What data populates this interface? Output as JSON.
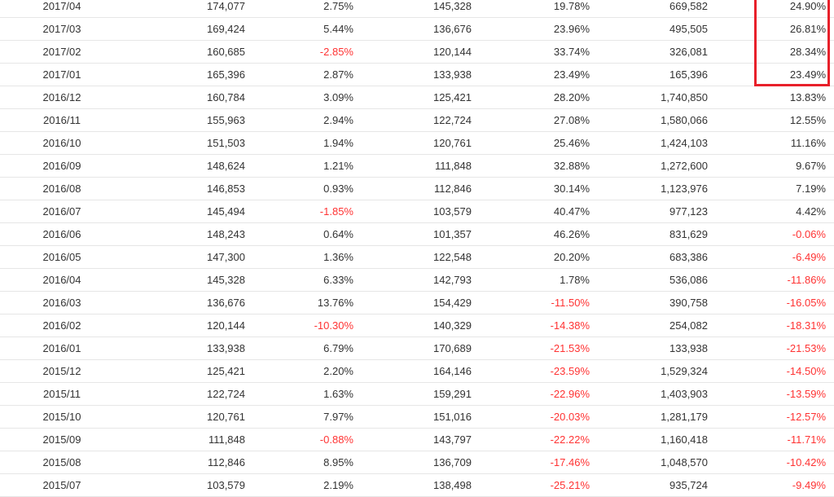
{
  "table": {
    "rows": [
      {
        "period": "2017/04",
        "c1": "174,077",
        "c2": "2.75%",
        "c3": "145,328",
        "c4": "19.78%",
        "c5": "669,582",
        "c6": "24.90%"
      },
      {
        "period": "2017/03",
        "c1": "169,424",
        "c2": "5.44%",
        "c3": "136,676",
        "c4": "23.96%",
        "c5": "495,505",
        "c6": "26.81%"
      },
      {
        "period": "2017/02",
        "c1": "160,685",
        "c2": "-2.85%",
        "c3": "120,144",
        "c4": "33.74%",
        "c5": "326,081",
        "c6": "28.34%"
      },
      {
        "period": "2017/01",
        "c1": "165,396",
        "c2": "2.87%",
        "c3": "133,938",
        "c4": "23.49%",
        "c5": "165,396",
        "c6": "23.49%"
      },
      {
        "period": "2016/12",
        "c1": "160,784",
        "c2": "3.09%",
        "c3": "125,421",
        "c4": "28.20%",
        "c5": "1,740,850",
        "c6": "13.83%"
      },
      {
        "period": "2016/11",
        "c1": "155,963",
        "c2": "2.94%",
        "c3": "122,724",
        "c4": "27.08%",
        "c5": "1,580,066",
        "c6": "12.55%"
      },
      {
        "period": "2016/10",
        "c1": "151,503",
        "c2": "1.94%",
        "c3": "120,761",
        "c4": "25.46%",
        "c5": "1,424,103",
        "c6": "11.16%"
      },
      {
        "period": "2016/09",
        "c1": "148,624",
        "c2": "1.21%",
        "c3": "111,848",
        "c4": "32.88%",
        "c5": "1,272,600",
        "c6": "9.67%"
      },
      {
        "period": "2016/08",
        "c1": "146,853",
        "c2": "0.93%",
        "c3": "112,846",
        "c4": "30.14%",
        "c5": "1,123,976",
        "c6": "7.19%"
      },
      {
        "period": "2016/07",
        "c1": "145,494",
        "c2": "-1.85%",
        "c3": "103,579",
        "c4": "40.47%",
        "c5": "977,123",
        "c6": "4.42%"
      },
      {
        "period": "2016/06",
        "c1": "148,243",
        "c2": "0.64%",
        "c3": "101,357",
        "c4": "46.26%",
        "c5": "831,629",
        "c6": "-0.06%"
      },
      {
        "period": "2016/05",
        "c1": "147,300",
        "c2": "1.36%",
        "c3": "122,548",
        "c4": "20.20%",
        "c5": "683,386",
        "c6": "-6.49%"
      },
      {
        "period": "2016/04",
        "c1": "145,328",
        "c2": "6.33%",
        "c3": "142,793",
        "c4": "1.78%",
        "c5": "536,086",
        "c6": "-11.86%"
      },
      {
        "period": "2016/03",
        "c1": "136,676",
        "c2": "13.76%",
        "c3": "154,429",
        "c4": "-11.50%",
        "c5": "390,758",
        "c6": "-16.05%"
      },
      {
        "period": "2016/02",
        "c1": "120,144",
        "c2": "-10.30%",
        "c3": "140,329",
        "c4": "-14.38%",
        "c5": "254,082",
        "c6": "-18.31%"
      },
      {
        "period": "2016/01",
        "c1": "133,938",
        "c2": "6.79%",
        "c3": "170,689",
        "c4": "-21.53%",
        "c5": "133,938",
        "c6": "-21.53%"
      },
      {
        "period": "2015/12",
        "c1": "125,421",
        "c2": "2.20%",
        "c3": "164,146",
        "c4": "-23.59%",
        "c5": "1,529,324",
        "c6": "-14.50%"
      },
      {
        "period": "2015/11",
        "c1": "122,724",
        "c2": "1.63%",
        "c3": "159,291",
        "c4": "-22.96%",
        "c5": "1,403,903",
        "c6": "-13.59%"
      },
      {
        "period": "2015/10",
        "c1": "120,761",
        "c2": "7.97%",
        "c3": "151,016",
        "c4": "-20.03%",
        "c5": "1,281,179",
        "c6": "-12.57%"
      },
      {
        "period": "2015/09",
        "c1": "111,848",
        "c2": "-0.88%",
        "c3": "143,797",
        "c4": "-22.22%",
        "c5": "1,160,418",
        "c6": "-11.71%"
      },
      {
        "period": "2015/08",
        "c1": "112,846",
        "c2": "8.95%",
        "c3": "136,709",
        "c4": "-17.46%",
        "c5": "1,048,570",
        "c6": "-10.42%"
      },
      {
        "period": "2015/07",
        "c1": "103,579",
        "c2": "2.19%",
        "c3": "138,498",
        "c4": "-25.21%",
        "c5": "935,724",
        "c6": "-9.49%"
      }
    ]
  },
  "colors": {
    "text": "#333333",
    "negative": "#ff3333",
    "highlight_border": "#e8202a",
    "row_divider": "#e6e6e6"
  }
}
